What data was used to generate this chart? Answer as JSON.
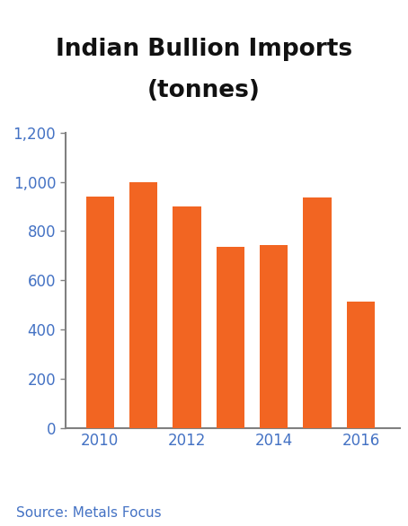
{
  "title_line1": "Indian Bullion Imports",
  "title_line2": "(tonnes)",
  "categories": [
    2010,
    2011,
    2012,
    2013,
    2014,
    2015,
    2016
  ],
  "values": [
    940,
    1000,
    900,
    735,
    745,
    935,
    515
  ],
  "bar_color": "#F26522",
  "ylim": [
    0,
    1200
  ],
  "yticks": [
    0,
    200,
    400,
    600,
    800,
    1000,
    1200
  ],
  "xticks": [
    2010,
    2012,
    2014,
    2016
  ],
  "source_text": "Source: Metals Focus",
  "title_bg_color": "#C0C0C0",
  "title_fontsize": 19,
  "title_fontweight": "bold",
  "tick_label_color": "#4472C4",
  "source_color": "#4472C4",
  "source_fontsize": 11,
  "bar_width": 0.65,
  "figsize": [
    4.54,
    5.86
  ],
  "dpi": 100,
  "spine_color": "#808080",
  "tick_color": "#808080"
}
